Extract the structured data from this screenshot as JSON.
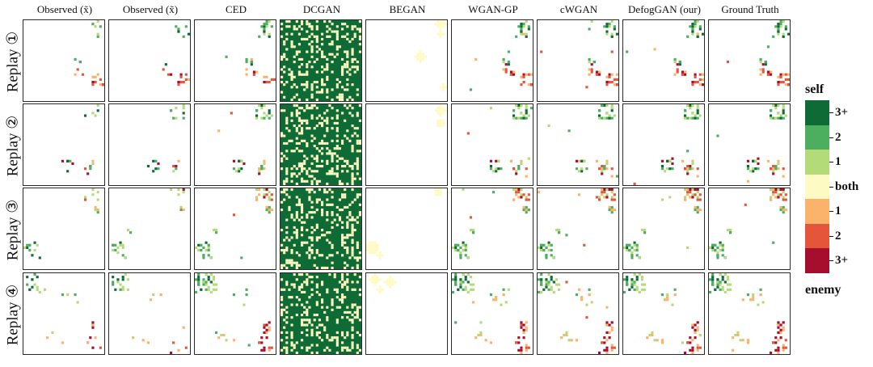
{
  "columns": [
    "Observed (x̃)",
    "Observed (x̃)",
    "CED",
    "DCGAN",
    "BEGAN",
    "WGAN-GP",
    "cWGAN",
    "DefogGAN (our)",
    "Ground Truth"
  ],
  "rows": [
    "Replay ①",
    "Replay ②",
    "Replay ③",
    "Replay ④"
  ],
  "legend": {
    "top_label": "self",
    "bottom_label": "enemy",
    "levels": [
      {
        "label": "3+",
        "color": "#0f6b35"
      },
      {
        "label": "2",
        "color": "#4caf5f"
      },
      {
        "label": "1",
        "color": "#b3dc79"
      },
      {
        "label": "both",
        "color": "#fdfbc3"
      },
      {
        "label": "1",
        "color": "#fbb26a"
      },
      {
        "label": "2",
        "color": "#e4553a"
      },
      {
        "label": "3+",
        "color": "#a50e2c"
      }
    ]
  },
  "colors": {
    "self3": "#0f6b35",
    "self2": "#4caf5f",
    "self1": "#b3dc79",
    "both": "#fdfbc3",
    "enemy1": "#fbb26a",
    "enemy2": "#e4553a",
    "enemy3": "#a50e2c",
    "panel_border": "#2a2a2a"
  }
}
